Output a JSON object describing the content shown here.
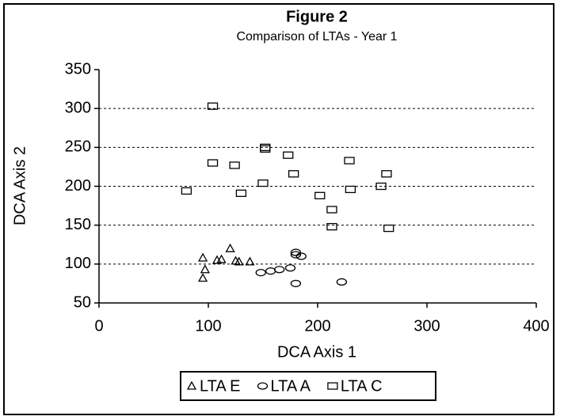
{
  "chart_data": {
    "type": "scatter",
    "title": "Figure 2",
    "subtitle": "Comparison of LTAs - Year 1",
    "x_label": "DCA Axis 1",
    "y_label": "DCA Axis 2",
    "xlim": [
      0,
      400
    ],
    "xticks": [
      0,
      100,
      200,
      300,
      400
    ],
    "ylim": [
      50,
      350
    ],
    "yticks": [
      50,
      100,
      150,
      200,
      250,
      300,
      350
    ],
    "grid": true,
    "legend": "bottom",
    "series": [
      {
        "name": "LTA E",
        "marker": "triangle",
        "color": "#000000",
        "x": [
          95,
          97,
          95,
          108,
          112,
          120,
          125,
          128,
          138
        ],
        "values": [
          108,
          93,
          82,
          105,
          106,
          120,
          104,
          103,
          103
        ]
      },
      {
        "name": "LTA A",
        "marker": "circle",
        "color": "#000000",
        "x": [
          148,
          157,
          165,
          175,
          180,
          180,
          185,
          180,
          222
        ],
        "values": [
          89,
          91,
          93,
          95,
          115,
          112,
          110,
          75,
          77
        ]
      },
      {
        "name": "LTA C",
        "marker": "square",
        "color": "#000000",
        "x": [
          104,
          104,
          124,
          130,
          80,
          150,
          152,
          152,
          173,
          178,
          202,
          213,
          213,
          229,
          230,
          258,
          263,
          265
        ],
        "values": [
          303,
          230,
          227,
          191,
          194,
          204,
          250,
          248,
          240,
          216,
          188,
          170,
          148,
          233,
          196,
          200,
          216,
          146
        ]
      }
    ]
  }
}
